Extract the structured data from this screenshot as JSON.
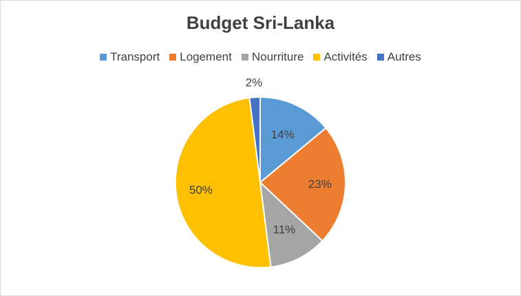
{
  "chart_data": {
    "type": "pie",
    "title": "Budget Sri-Lanka",
    "legend_position": "top",
    "categories": [
      "Transport",
      "Logement",
      "Nourriture",
      "Activités",
      "Autres"
    ],
    "values": [
      14,
      23,
      11,
      50,
      2
    ],
    "labels": [
      "14%",
      "23%",
      "11%",
      "50%",
      "2%"
    ],
    "colors": [
      "#5b9bd5",
      "#ed7d31",
      "#a5a5a5",
      "#ffc000",
      "#4472c4"
    ],
    "start_angle_deg": 0,
    "direction": "clockwise"
  }
}
